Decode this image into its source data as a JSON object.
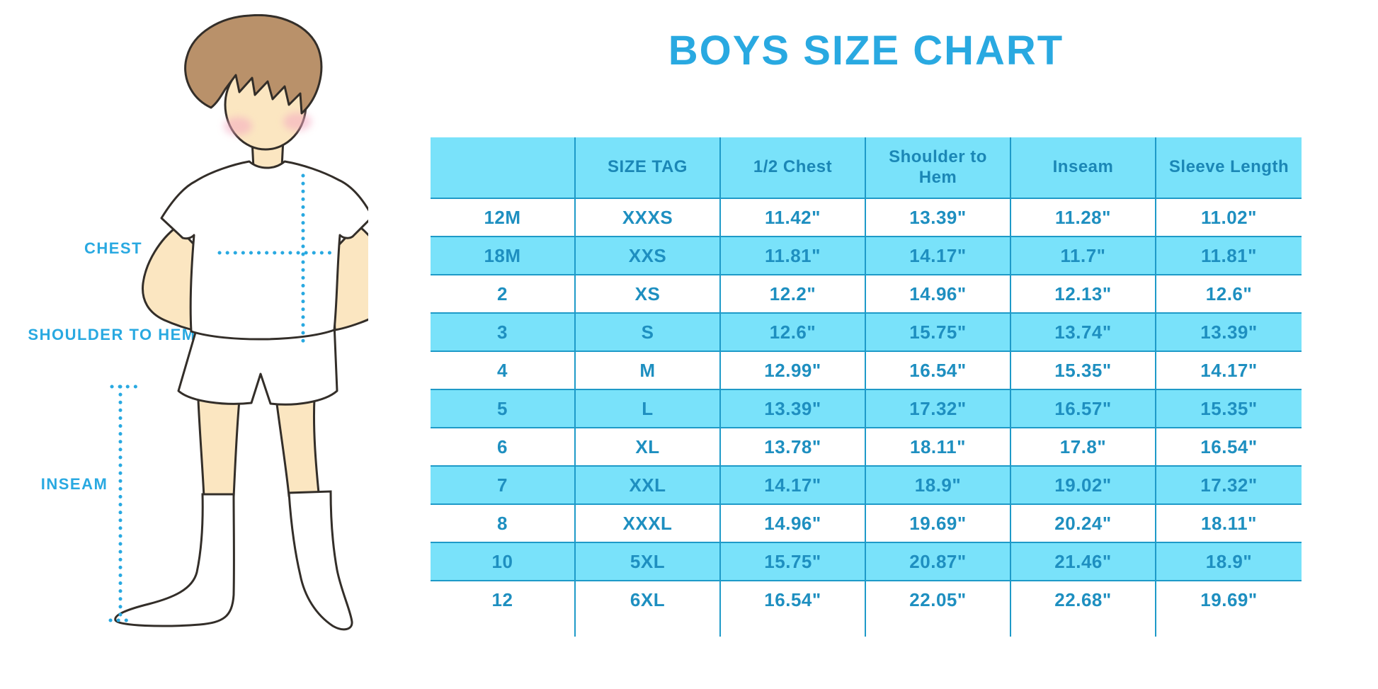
{
  "title": "BOYS SIZE CHART",
  "figure": {
    "labels": {
      "chest": "CHEST",
      "shoulder_to_hem": "SHOULDER TO HEM",
      "inseam": "INSEAM"
    }
  },
  "chart_data": {
    "type": "table",
    "title": "BOYS SIZE CHART",
    "columns": [
      "",
      "SIZE TAG",
      "1/2 Chest",
      "Shoulder to Hem",
      "Inseam",
      "Sleeve Length"
    ],
    "rows": [
      [
        "12M",
        "XXXS",
        "11.42\"",
        "13.39\"",
        "11.28\"",
        "11.02\""
      ],
      [
        "18M",
        "XXS",
        "11.81\"",
        "14.17\"",
        "11.7\"",
        "11.81\""
      ],
      [
        "2",
        "XS",
        "12.2\"",
        "14.96\"",
        "12.13\"",
        "12.6\""
      ],
      [
        "3",
        "S",
        "12.6\"",
        "15.75\"",
        "13.74\"",
        "13.39\""
      ],
      [
        "4",
        "M",
        "12.99\"",
        "16.54\"",
        "15.35\"",
        "14.17\""
      ],
      [
        "5",
        "L",
        "13.39\"",
        "17.32\"",
        "16.57\"",
        "15.35\""
      ],
      [
        "6",
        "XL",
        "13.78\"",
        "18.11\"",
        "17.8\"",
        "16.54\""
      ],
      [
        "7",
        "XXL",
        "14.17\"",
        "18.9\"",
        "19.02\"",
        "17.32\""
      ],
      [
        "8",
        "XXXL",
        "14.96\"",
        "19.69\"",
        "20.24\"",
        "18.11\""
      ],
      [
        "10",
        "5XL",
        "15.75\"",
        "20.87\"",
        "21.46\"",
        "18.9\""
      ],
      [
        "12",
        "6XL",
        "16.54\"",
        "22.05\"",
        "22.68\"",
        "19.69\""
      ]
    ],
    "layout_hints": {
      "row_striping": "alternating white and light cyan, first data row white",
      "stripe_color": "#79E2FA",
      "divider_color": "#1E9AC8",
      "header_text_color": "#1B87B6",
      "cell_text_color": "#1E8FC0",
      "title_color": "#29A9E1",
      "units": "inches"
    }
  },
  "colors": {
    "accent_blue": "#29A9E1",
    "stripe_cyan": "#79E2FA",
    "divider_blue": "#1E9AC8",
    "skin": "#FBE6C1",
    "hair": "#B9916A",
    "outline": "#332E29",
    "cheek_pink": "#F4A9C1"
  }
}
